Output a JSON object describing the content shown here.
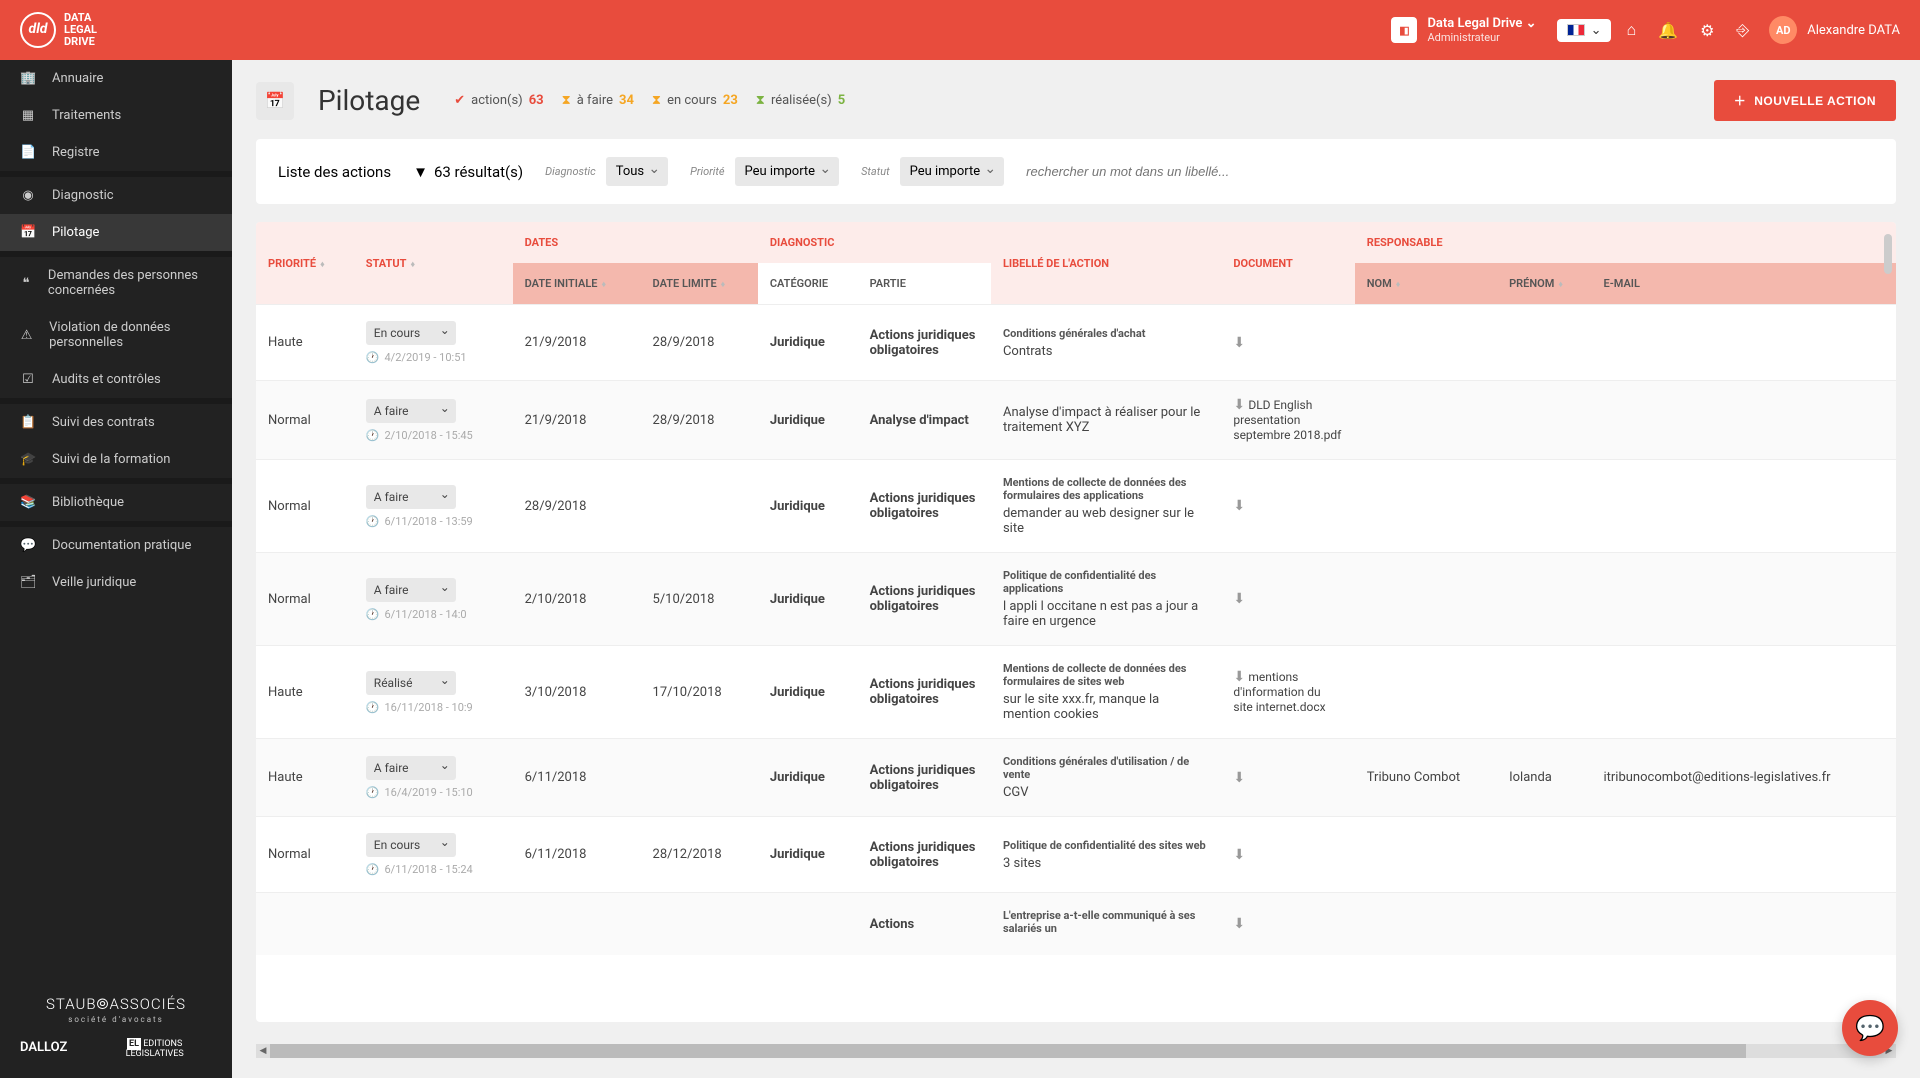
{
  "brand": {
    "line1": "DATA",
    "line2": "LEGAL",
    "line3": "DRIVE"
  },
  "header": {
    "org_name": "Data Legal Drive",
    "org_role": "Administrateur",
    "user_initials": "AD",
    "user_name": "Alexandre DATA"
  },
  "sidebar": {
    "groups": [
      [
        {
          "icon": "🏢",
          "label": "Annuaire"
        },
        {
          "icon": "▦",
          "label": "Traitements"
        },
        {
          "icon": "📄",
          "label": "Registre"
        }
      ],
      [
        {
          "icon": "◉",
          "label": "Diagnostic"
        },
        {
          "icon": "📅",
          "label": "Pilotage",
          "active": true
        }
      ],
      [
        {
          "icon": "❝",
          "label": "Demandes des personnes concernées"
        },
        {
          "icon": "⚠",
          "label": "Violation de données personnelles"
        },
        {
          "icon": "☑",
          "label": "Audits et contrôles"
        }
      ],
      [
        {
          "icon": "📋",
          "label": "Suivi des contrats"
        },
        {
          "icon": "🎓",
          "label": "Suivi de la formation"
        }
      ],
      [
        {
          "icon": "📚",
          "label": "Bibliothèque"
        }
      ],
      [
        {
          "icon": "💬",
          "label": "Documentation pratique"
        },
        {
          "icon": "🗂",
          "label": "Veille juridique"
        }
      ]
    ],
    "footer": {
      "staub": "STAUB⦾ASSOCIÉS",
      "staub_sub": "société d'avocats",
      "dalloz": "DALLOZ",
      "editions": "EDITIONS LEGISLATIVES"
    }
  },
  "page": {
    "title": "Pilotage",
    "stats": [
      {
        "icon": "✔",
        "icon_color": "#e84c3d",
        "label": "action(s)",
        "val": "63",
        "val_color": "#e84c3d"
      },
      {
        "icon": "⧗",
        "icon_color": "#f5a623",
        "label": "à faire",
        "val": "34",
        "val_color": "#f5a623"
      },
      {
        "icon": "⧗",
        "icon_color": "#f5a623",
        "label": "en cours",
        "val": "23",
        "val_color": "#f5a623"
      },
      {
        "icon": "⧗",
        "icon_color": "#7cb342",
        "label": "réalisée(s)",
        "val": "5",
        "val_color": "#7cb342"
      }
    ],
    "new_action": "NOUVELLE ACTION"
  },
  "filters": {
    "list_label": "Liste des actions",
    "count": "63 résultat(s)",
    "diag_label": "Diagnostic",
    "diag_val": "Tous",
    "prio_label": "Priorité",
    "prio_val": "Peu importe",
    "statut_label": "Statut",
    "statut_val": "Peu importe",
    "search_placeholder": "rechercher un mot dans un libellé..."
  },
  "table": {
    "group_headers": {
      "dates": "DATES",
      "diagnostic": "DIAGNOSTIC",
      "responsable": "RESPONSABLE"
    },
    "cols": {
      "priorite": "PRIORITÉ",
      "statut": "STATUT",
      "date_init": "DATE INITIALE",
      "date_lim": "DATE LIMITE",
      "categorie": "CATÉGORIE",
      "partie": "PARTIE",
      "libelle": "LIBELLÉ DE L'ACTION",
      "document": "DOCUMENT",
      "nom": "NOM",
      "prenom": "PRÉNOM",
      "email": "E-MAIL"
    },
    "rows": [
      {
        "prio": "Haute",
        "statut": "En cours",
        "ts": "4/2/2019 - 10:51",
        "d1": "21/9/2018",
        "d2": "28/9/2018",
        "cat": "Juridique",
        "partie": "Actions juridiques obligatoires",
        "lib_t": "Conditions générales d'achat",
        "lib": "Contrats",
        "doc": "",
        "nom": "",
        "pre": "",
        "em": ""
      },
      {
        "prio": "Normal",
        "statut": "A faire",
        "ts": "2/10/2018 - 15:45",
        "d1": "21/9/2018",
        "d2": "28/9/2018",
        "cat": "Juridique",
        "partie": "Analyse d'impact",
        "lib_t": "",
        "lib": "Analyse d'impact à réaliser pour le traitement XYZ",
        "doc": "DLD English presentation septembre 2018.pdf",
        "nom": "",
        "pre": "",
        "em": ""
      },
      {
        "prio": "Normal",
        "statut": "A faire",
        "ts": "6/11/2018 - 13:59",
        "d1": "28/9/2018",
        "d2": "",
        "cat": "Juridique",
        "partie": "Actions juridiques obligatoires",
        "lib_t": "Mentions de collecte de données des formulaires des applications",
        "lib": "demander au web designer sur le site",
        "doc": "",
        "nom": "",
        "pre": "",
        "em": ""
      },
      {
        "prio": "Normal",
        "statut": "A faire",
        "ts": "6/11/2018 - 14:0",
        "d1": "2/10/2018",
        "d2": "5/10/2018",
        "cat": "Juridique",
        "partie": "Actions juridiques obligatoires",
        "lib_t": "Politique de confidentialité des applications",
        "lib": "l appli l occitane n est pas a jour a faire en urgence",
        "doc": "",
        "nom": "",
        "pre": "",
        "em": ""
      },
      {
        "prio": "Haute",
        "statut": "Réalisé",
        "ts": "16/11/2018 - 10:9",
        "d1": "3/10/2018",
        "d2": "17/10/2018",
        "cat": "Juridique",
        "partie": "Actions juridiques obligatoires",
        "lib_t": "Mentions de collecte de données des formulaires de sites web",
        "lib": "sur le site xxx.fr, manque la mention cookies",
        "doc": "mentions d'information du site internet.docx",
        "nom": "",
        "pre": "",
        "em": ""
      },
      {
        "prio": "Haute",
        "statut": "A faire",
        "ts": "16/4/2019 - 15:10",
        "d1": "6/11/2018",
        "d2": "",
        "cat": "Juridique",
        "partie": "Actions juridiques obligatoires",
        "lib_t": "Conditions générales d'utilisation / de vente",
        "lib": "CGV",
        "doc": "",
        "nom": "Tribuno Combot",
        "pre": "Iolanda",
        "em": "itribunocombot@editions-legislatives.fr"
      },
      {
        "prio": "Normal",
        "statut": "En cours",
        "ts": "6/11/2018 - 15:24",
        "d1": "6/11/2018",
        "d2": "28/12/2018",
        "cat": "Juridique",
        "partie": "Actions juridiques obligatoires",
        "lib_t": "Politique de confidentialité des sites web",
        "lib": "3 sites",
        "doc": "",
        "nom": "",
        "pre": "",
        "em": ""
      },
      {
        "prio": "",
        "statut": "",
        "ts": "",
        "d1": "",
        "d2": "",
        "cat": "",
        "partie": "Actions",
        "lib_t": "L'entreprise a-t-elle communiqué à ses salariés un",
        "lib": "",
        "doc": "",
        "nom": "",
        "pre": "",
        "em": ""
      }
    ]
  }
}
